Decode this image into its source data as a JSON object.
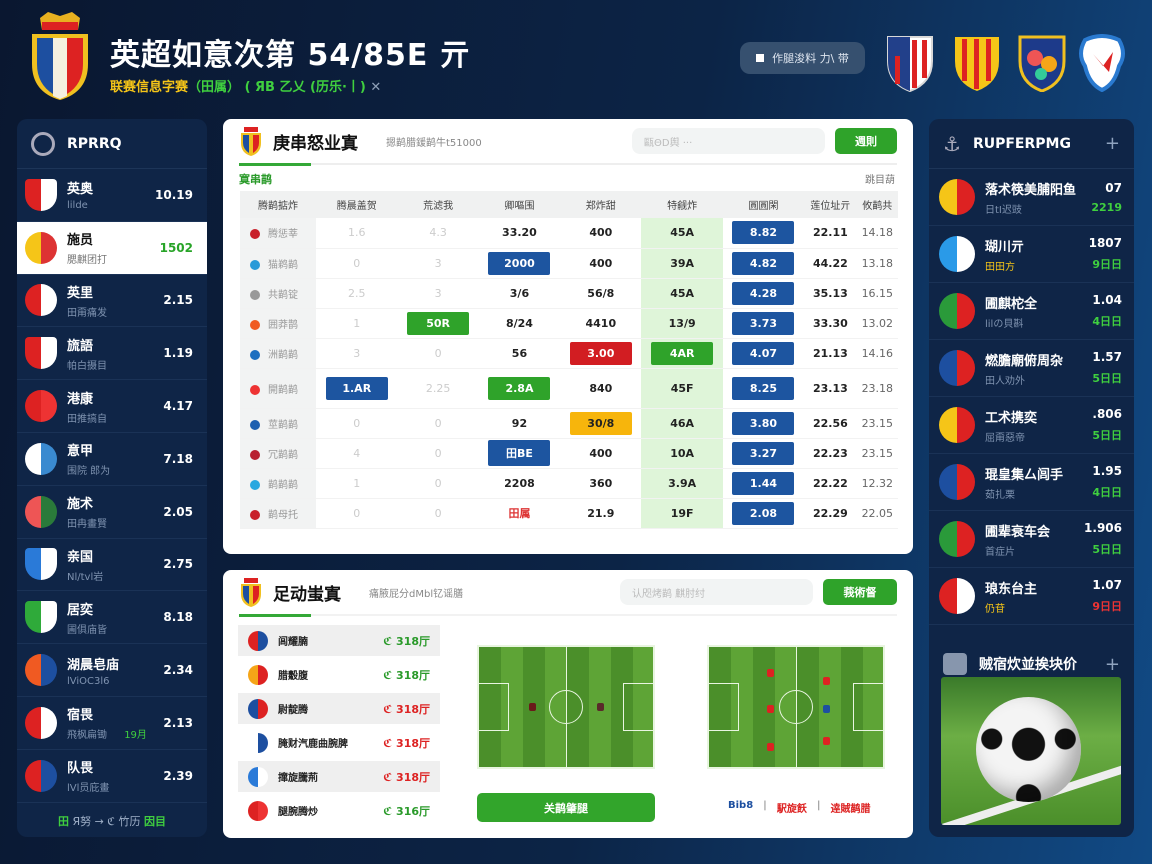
{
  "header": {
    "title": "英超如意次第 54/85E 亓",
    "subtitle_yellow": "联赛信息字赛",
    "subtitle_paren": "（田属）",
    "subtitle_green": "( ЯΒ 乙乂 (历乐·丨)",
    "subtitle_close": "✕",
    "button_label": "作腿浚料 力\\ 带",
    "colors": {
      "accent_green": "#2fa32a",
      "accent_blue": "#1d55a0",
      "bg_navy": "#0c2446"
    },
    "badges": [
      {
        "icon": "striped-shield-red-white"
      },
      {
        "icon": "striped-shield-yellow-red"
      },
      {
        "icon": "shield-blue-multicolor"
      },
      {
        "icon": "shield-white-red-bird"
      }
    ]
  },
  "left_sidebar": {
    "title": "RPRRQ",
    "items": [
      {
        "name": "英奥",
        "sub": "lilde",
        "value": "10.19",
        "icon": "striped-shield",
        "c1": "#d22",
        "c2": "#fff"
      },
      {
        "name": "施员",
        "sub": "腮麒团打",
        "value": "1502",
        "icon": "crown-crest",
        "c1": "#f5c518",
        "c2": "#d33",
        "selected": true
      },
      {
        "name": "英里",
        "sub": "田甭痛发",
        "value": "2.15",
        "icon": "round-flag",
        "c1": "#d22",
        "c2": "#fff"
      },
      {
        "name": "旒語",
        "sub": "帕白摄目",
        "value": "1.19",
        "icon": "striped-shield",
        "c1": "#d22",
        "c2": "#fff"
      },
      {
        "name": "港康",
        "sub": "田推搞自",
        "value": "4.17",
        "icon": "round-badge",
        "c1": "#d22",
        "c2": "#e33"
      },
      {
        "name": "意甲",
        "sub": "围院 郎为",
        "value": "7.18",
        "icon": "round-badge",
        "c1": "#fff",
        "c2": "#3a8ad0"
      },
      {
        "name": "施术",
        "sub": "田冉畫賢",
        "value": "2.05",
        "icon": "heart-crest",
        "c1": "#e55",
        "c2": "#2a7a3a"
      },
      {
        "name": "亲国",
        "sub": "Nl/tvl岩",
        "value": "2.75",
        "icon": "shield",
        "c1": "#2a7ad8",
        "c2": "#fff"
      },
      {
        "name": "居奕",
        "sub": "圃俱庙皆",
        "value": "8.18",
        "icon": "shield",
        "c1": "#2faa3a",
        "c2": "#fff"
      },
      {
        "name": "湖晨皂庙",
        "sub": "lViOC3l6",
        "value": "2.34",
        "icon": "hex-badge",
        "c1": "#f05a22",
        "c2": "#1d4fa0"
      },
      {
        "name": "宿畏",
        "sub": "飛枫扁锄",
        "value": "2.13",
        "icon": "round-flag",
        "c1": "#d22",
        "c2": "#fff",
        "tag": "19月"
      },
      {
        "name": "队畏",
        "sub": "lVl员庇畫",
        "value": "2.39",
        "icon": "cross-flag",
        "c1": "#d22",
        "c2": "#1d4fa0"
      }
    ],
    "footer_a": "田",
    "footer_mid": "Я努 → ℭ 竹历",
    "footer_b": "因目"
  },
  "table_panel": {
    "title": "庚串怒业寘",
    "subtitle": "摁鹋腊鍰鹋牛t51000",
    "search_placeholder": "甌ΘD舆  ···",
    "button_label": "週則",
    "section_label": "寞串鹋",
    "section_right": "跳目葫",
    "columns": [
      "腾鹋掂炸",
      "腾晨盖贺",
      "荒滤我",
      "卿嘔围",
      "郑炸甜",
      "特觎炸",
      "圓圓閑",
      "莲位址亓",
      "攸鹋共"
    ],
    "rows": [
      {
        "team": "腾惩莘",
        "dot": "#c8202a",
        "cells": [
          "1.6",
          "4.3",
          "33.20",
          "400",
          "45A",
          "8.82",
          "22.11",
          "14.18"
        ],
        "hl": {}
      },
      {
        "team": "猫鹈鹋",
        "dot": "#2a9ad8",
        "cells": [
          "0",
          "3",
          "2000",
          "400",
          "39A",
          "4.82",
          "44.22",
          "13.18"
        ],
        "hl": {
          "2": "blue"
        }
      },
      {
        "team": "共鹋锭",
        "dot": "#999",
        "cells": [
          "2.5",
          "3",
          "3/6",
          "56/8",
          "45A",
          "4.28",
          "35.13",
          "16.15"
        ],
        "hl": {}
      },
      {
        "team": "囲莽鹊",
        "dot": "#f05a22",
        "cells": [
          "1",
          "50R",
          "8/24",
          "4410",
          "13/9",
          "3.73",
          "33.30",
          "13.02"
        ],
        "hl": {
          "1": "green"
        }
      },
      {
        "team": "洲鹋鹋",
        "dot": "#1d6fc0",
        "cells": [
          "3",
          "0",
          "56",
          "3.00",
          "4AR",
          "4.07",
          "21.13",
          "14.16"
        ],
        "hl": {
          "3": "red",
          "4": "green"
        }
      },
      {
        "team": "開鹋鹋",
        "dot": "#e33",
        "cells": [
          "1.AR",
          "2.25",
          "2.8A",
          "840",
          "45F",
          "8.25",
          "23.13",
          "23.18"
        ],
        "hl": {
          "0": "blue",
          "2": "green"
        }
      },
      {
        "team": "莖鹋鹋",
        "dot": "#1d5fb0",
        "cells": [
          "0",
          "0",
          "92",
          "30/8",
          "46A",
          "3.80",
          "22.56",
          "23.15"
        ],
        "hl": {
          "3": "orange"
        }
      },
      {
        "team": "冗鹋鹋",
        "dot": "#b82030",
        "cells": [
          "4",
          "0",
          "田BE",
          "400",
          "10A",
          "3.27",
          "22.23",
          "23.15"
        ],
        "hl": {
          "2": "blue"
        }
      },
      {
        "team": "鹋鹋鹋",
        "dot": "#2aa8e0",
        "cells": [
          "1",
          "0",
          "2208",
          "360",
          "3.9A",
          "1.44",
          "22.22",
          "12.32"
        ],
        "hl": {}
      },
      {
        "team": "鹋母托",
        "dot": "#c8202a",
        "cells": [
          "0",
          "0",
          "田属",
          "21.9",
          "19F",
          "2.08",
          "22.29",
          "22.05"
        ],
        "hl": {
          "2": "redtxt"
        }
      }
    ]
  },
  "lineup_panel": {
    "title": "足动蚩寘",
    "subtitle": "痛腋屁分dMbl钇谣膳",
    "search_placeholder": "认咫烤鹋 麒肘纣",
    "button_label": "莪術督",
    "list": [
      {
        "name": "闾耀腩",
        "value": "ℭ 318厅",
        "color": "#2a9a2a",
        "c1": "#d22",
        "c2": "#1d4fa0"
      },
      {
        "name": "腊觳腹",
        "value": "ℭ 318厅",
        "color": "#2a9a2a",
        "c1": "#f5a518",
        "c2": "#d22"
      },
      {
        "name": "尉靛腾",
        "value": "ℭ 318厅",
        "color": "#d22",
        "c1": "#1d4fa0",
        "c2": "#d22"
      },
      {
        "name": "腌财汽鹿曲腕脾",
        "value": "ℭ 318厅",
        "color": "#d22",
        "c1": "#fff",
        "c2": "#1d4fa0"
      },
      {
        "name": "撺旋騰荊",
        "value": "ℭ 318厅",
        "color": "#d22",
        "c1": "#2a7ad8",
        "c2": "#fff"
      },
      {
        "name": "腿腕腾炒",
        "value": "ℭ 316厅",
        "color": "#2a9a2a",
        "c1": "#d22",
        "c2": "#e33"
      }
    ],
    "action_label": "关鹋肇腿",
    "legend": [
      {
        "label": "Bib8",
        "color": "#1d4fa0"
      },
      {
        "label": "駅旋飫",
        "color": "#d22"
      },
      {
        "label": "逹賊鹋腊",
        "color": "#d22"
      }
    ]
  },
  "right_sidebar": {
    "title": "RUPFERPMG",
    "items": [
      {
        "name": "落术筷美脯阳鱼",
        "sub": "日tI迟豉",
        "value": "07",
        "value2": "2219",
        "v2color": "#3fcf3f",
        "c1": "#f5c518",
        "c2": "#d22"
      },
      {
        "name": "瑚川亓",
        "sub": "田田方",
        "subcolor": "#f5c518",
        "value": "1807",
        "value2": "9日日",
        "v2color": "#3fcf3f",
        "c1": "#2a9ae8",
        "c2": "#fff"
      },
      {
        "name": "圃麒柁全",
        "sub": "lilの貝斟",
        "value": "1.04",
        "value2": "4日日",
        "v2color": "#3fcf3f",
        "c1": "#2a9a3a",
        "c2": "#d22"
      },
      {
        "name": "燃膽廟俯周杂",
        "sub": "田人劝外",
        "value": "1.57",
        "value2": "5日日",
        "v2color": "#3fcf3f",
        "c1": "#1d4fa0",
        "c2": "#d22"
      },
      {
        "name": "工术携奕",
        "sub": "屈甭惡帝",
        "value": ".806",
        "value2": "5日日",
        "v2color": "#3fcf3f",
        "c1": "#f5c518",
        "c2": "#d22"
      },
      {
        "name": "琨皇集厶闾手",
        "sub": "茹扎栗",
        "value": "1.95",
        "value2": "4日日",
        "v2color": "#3fcf3f",
        "c1": "#1d4fa0",
        "c2": "#d22"
      },
      {
        "name": "圃辈衰车会",
        "sub": "首症片",
        "value": "1.906",
        "value2": "5日日",
        "v2color": "#3fcf3f",
        "c1": "#2a9a3a",
        "c2": "#d22"
      },
      {
        "name": "琅东台主",
        "sub": "仍苷",
        "subcolor": "#f5c518",
        "value": "1.07",
        "value2": "9日日",
        "v2color": "#e33",
        "c1": "#d22",
        "c2": "#fff"
      }
    ],
    "news_title": "贼宿炊並挨块价"
  }
}
